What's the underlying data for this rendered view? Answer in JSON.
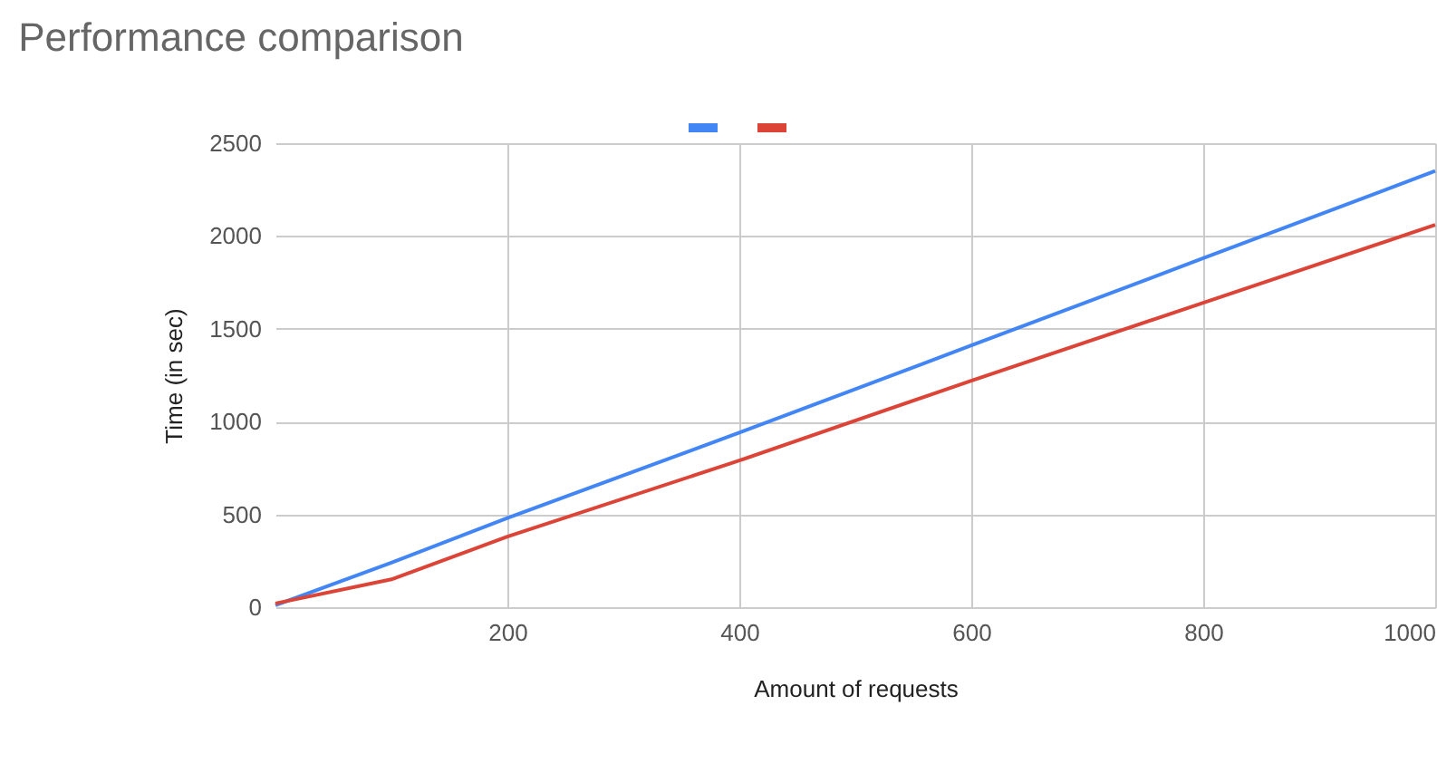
{
  "chart_data": {
    "type": "line",
    "title": "Performance comparison",
    "xlabel": "Amount of requests",
    "ylabel": "Time (in sec)",
    "x": [
      0,
      100,
      200,
      400,
      600,
      800,
      1000
    ],
    "series": [
      {
        "color": "#4285f4",
        "values": [
          10,
          240,
          480,
          940,
          1410,
          1880,
          2350
        ]
      },
      {
        "color": "#db4437",
        "values": [
          20,
          150,
          380,
          790,
          1220,
          1640,
          2060
        ]
      }
    ],
    "xlim": [
      0,
      1000
    ],
    "xticks": [
      200,
      400,
      600,
      800,
      1000
    ],
    "ylim": [
      0,
      2500
    ],
    "yticks": [
      0,
      500,
      1000,
      1500,
      2000,
      2500
    ],
    "grid": true
  }
}
